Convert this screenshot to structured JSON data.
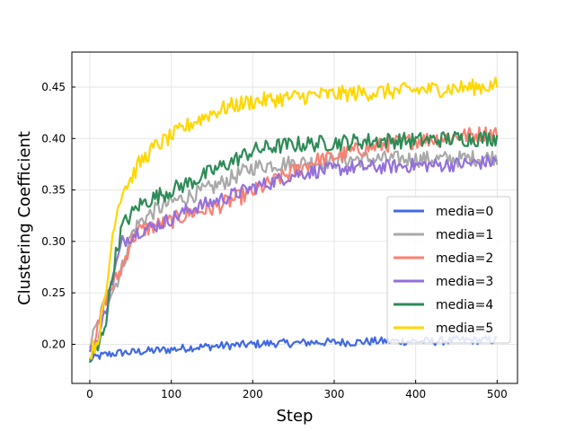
{
  "chart_data": {
    "type": "line",
    "title": "",
    "xlabel": "Step",
    "ylabel": "Clustering Coefficient",
    "xlim": [
      -22,
      525
    ],
    "ylim": [
      0.162,
      0.484
    ],
    "xticks": [
      0,
      100,
      200,
      300,
      400,
      500
    ],
    "yticks": [
      0.2,
      0.25,
      0.3,
      0.35,
      0.4,
      0.45
    ],
    "xtick_labels": [
      "0",
      "100",
      "200",
      "300",
      "400",
      "500"
    ],
    "ytick_labels": [
      "0.20",
      "0.25",
      "0.30",
      "0.35",
      "0.40",
      "0.45"
    ],
    "grid": true,
    "legend_position": "center-right",
    "x": [
      0,
      10,
      20,
      30,
      40,
      50,
      60,
      80,
      100,
      125,
      150,
      175,
      200,
      225,
      250,
      275,
      300,
      325,
      350,
      375,
      400,
      425,
      450,
      475,
      500
    ],
    "series": [
      {
        "name": "media=0",
        "color": "#4169e1",
        "noise": 0.004,
        "values": [
          0.185,
          0.188,
          0.19,
          0.191,
          0.192,
          0.192,
          0.193,
          0.194,
          0.195,
          0.197,
          0.198,
          0.199,
          0.2,
          0.201,
          0.201,
          0.202,
          0.202,
          0.202,
          0.203,
          0.203,
          0.203,
          0.203,
          0.204,
          0.204,
          0.204
        ]
      },
      {
        "name": "media=1",
        "color": "#a9a9a9",
        "noise": 0.008,
        "values": [
          0.2,
          0.22,
          0.245,
          0.255,
          0.275,
          0.305,
          0.318,
          0.33,
          0.338,
          0.345,
          0.352,
          0.362,
          0.372,
          0.375,
          0.376,
          0.377,
          0.378,
          0.38,
          0.38,
          0.38,
          0.38,
          0.38,
          0.38,
          0.381,
          0.382
        ]
      },
      {
        "name": "media=2",
        "color": "#fa8072",
        "noise": 0.008,
        "values": [
          0.195,
          0.215,
          0.245,
          0.26,
          0.275,
          0.3,
          0.31,
          0.315,
          0.32,
          0.328,
          0.332,
          0.34,
          0.348,
          0.358,
          0.368,
          0.378,
          0.382,
          0.388,
          0.392,
          0.396,
          0.398,
          0.4,
          0.402,
          0.404,
          0.406
        ]
      },
      {
        "name": "media=3",
        "color": "#9370db",
        "noise": 0.007,
        "values": [
          0.19,
          0.205,
          0.235,
          0.27,
          0.3,
          0.305,
          0.31,
          0.315,
          0.322,
          0.332,
          0.338,
          0.345,
          0.352,
          0.358,
          0.365,
          0.368,
          0.37,
          0.372,
          0.372,
          0.373,
          0.374,
          0.374,
          0.375,
          0.376,
          0.378
        ]
      },
      {
        "name": "media=4",
        "color": "#2e8b57",
        "noise": 0.008,
        "values": [
          0.185,
          0.195,
          0.225,
          0.28,
          0.315,
          0.325,
          0.335,
          0.343,
          0.35,
          0.358,
          0.368,
          0.378,
          0.388,
          0.392,
          0.394,
          0.395,
          0.396,
          0.397,
          0.398,
          0.398,
          0.398,
          0.399,
          0.4,
          0.4,
          0.401
        ]
      },
      {
        "name": "media=5",
        "color": "#ffd700",
        "noise": 0.008,
        "values": [
          0.19,
          0.205,
          0.25,
          0.32,
          0.35,
          0.36,
          0.375,
          0.392,
          0.402,
          0.415,
          0.425,
          0.432,
          0.436,
          0.438,
          0.44,
          0.442,
          0.443,
          0.444,
          0.445,
          0.446,
          0.447,
          0.448,
          0.449,
          0.45,
          0.452
        ]
      }
    ]
  }
}
